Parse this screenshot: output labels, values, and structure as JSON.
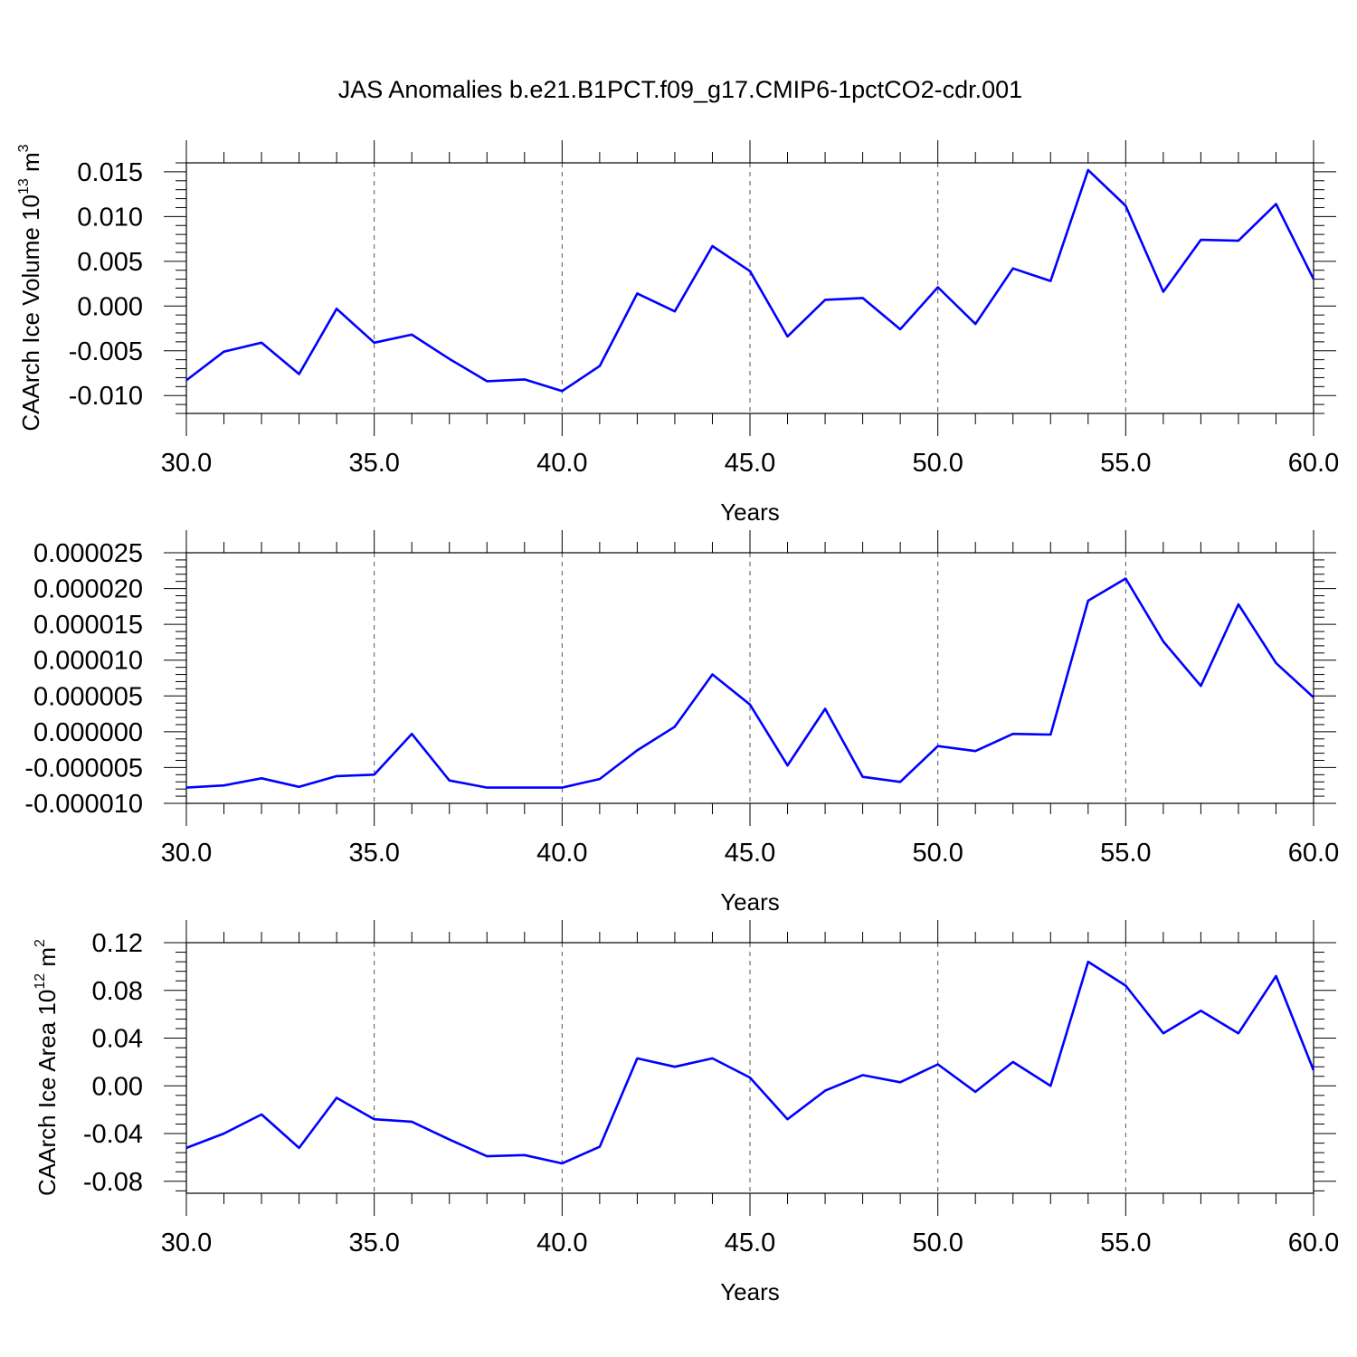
{
  "title": "JAS Anomalies b.e21.B1PCT.f09_g17.CMIP6-1pctCO2-cdr.001",
  "colors": {
    "line": "#0000ff",
    "axis": "#000000",
    "grid": "#555555"
  },
  "chart_data": [
    {
      "type": "line",
      "ylabel": {
        "text": "CAArch Ice Volume 10",
        "sup": "13",
        "unit": " m",
        "unit_sup": "3"
      },
      "xlabel": "Years",
      "xlim": [
        30,
        60
      ],
      "ylim": [
        -0.012,
        0.016
      ],
      "x_ticks": [
        30,
        35,
        40,
        45,
        50,
        55,
        60
      ],
      "x_tick_labels": [
        "30.0",
        "35.0",
        "40.0",
        "45.0",
        "50.0",
        "55.0",
        "60.0"
      ],
      "y_ticks": [
        -0.01,
        -0.005,
        0.0,
        0.005,
        0.01,
        0.015
      ],
      "y_tick_labels": [
        "-0.010",
        "-0.005",
        "0.000",
        "0.005",
        "0.010",
        "0.015"
      ],
      "grid": "dashed vertical at x major ticks",
      "series": [
        {
          "x": [
            30,
            31,
            32,
            33,
            34,
            35,
            36,
            37,
            38,
            39,
            40,
            41,
            42,
            43,
            44,
            45,
            46,
            47,
            48,
            49,
            50,
            51,
            52,
            53,
            54,
            55,
            56,
            57,
            58,
            59,
            60
          ],
          "values": [
            -0.0083,
            -0.0051,
            -0.0041,
            -0.0076,
            -0.0003,
            -0.0041,
            -0.0032,
            -0.0059,
            -0.0084,
            -0.0082,
            -0.0095,
            -0.0067,
            0.0014,
            -0.0006,
            0.0067,
            0.0039,
            -0.0034,
            0.0007,
            0.0009,
            -0.0026,
            0.0021,
            -0.002,
            0.0042,
            0.0028,
            0.0152,
            0.0112,
            0.0016,
            0.0074,
            0.0073,
            0.0114,
            0.003
          ]
        }
      ]
    },
    {
      "type": "line",
      "ylabel": null,
      "xlabel": "Years",
      "xlim": [
        30,
        60
      ],
      "ylim": [
        -1e-05,
        2.5e-05
      ],
      "x_ticks": [
        30,
        35,
        40,
        45,
        50,
        55,
        60
      ],
      "x_tick_labels": [
        "30.0",
        "35.0",
        "40.0",
        "45.0",
        "50.0",
        "55.0",
        "60.0"
      ],
      "y_ticks": [
        -1e-05,
        -5e-06,
        0,
        5e-06,
        1e-05,
        1.5e-05,
        2e-05,
        2.5e-05
      ],
      "y_tick_labels": [
        "-0.000010",
        "-0.000005",
        "0.000000",
        "0.000005",
        "0.000010",
        "0.000015",
        "0.000020",
        "0.000025"
      ],
      "grid": "dashed vertical at x major ticks",
      "series": [
        {
          "x": [
            30,
            31,
            32,
            33,
            34,
            35,
            36,
            37,
            38,
            39,
            40,
            41,
            42,
            43,
            44,
            45,
            46,
            47,
            48,
            49,
            50,
            51,
            52,
            53,
            54,
            55,
            56,
            57,
            58,
            59,
            60
          ],
          "values": [
            -7.8e-06,
            -7.5e-06,
            -6.5e-06,
            -7.7e-06,
            -6.2e-06,
            -6e-06,
            -3e-07,
            -6.8e-06,
            -7.8e-06,
            -7.8e-06,
            -7.8e-06,
            -6.6e-06,
            -2.6e-06,
            7e-07,
            8e-06,
            3.8e-06,
            -4.7e-06,
            3.2e-06,
            -6.3e-06,
            -7e-06,
            -2e-06,
            -2.7e-06,
            -3e-07,
            -4e-07,
            1.83e-05,
            2.14e-05,
            1.26e-05,
            6.4e-06,
            1.78e-05,
            9.6e-06,
            4.8e-06
          ]
        }
      ]
    },
    {
      "type": "line",
      "ylabel": {
        "text": "CAArch Ice Area 10",
        "sup": "12",
        "unit": " m",
        "unit_sup": "2"
      },
      "xlabel": "Years",
      "xlim": [
        30,
        60
      ],
      "ylim": [
        -0.09,
        0.12
      ],
      "x_ticks": [
        30,
        35,
        40,
        45,
        50,
        55,
        60
      ],
      "x_tick_labels": [
        "30.0",
        "35.0",
        "40.0",
        "45.0",
        "50.0",
        "55.0",
        "60.0"
      ],
      "y_ticks": [
        -0.08,
        -0.04,
        0.0,
        0.04,
        0.08,
        0.12
      ],
      "y_tick_labels": [
        "-0.08",
        "-0.04",
        "0.00",
        "0.04",
        "0.08",
        "0.12"
      ],
      "grid": "dashed vertical at x major ticks",
      "series": [
        {
          "x": [
            30,
            31,
            32,
            33,
            34,
            35,
            36,
            37,
            38,
            39,
            40,
            41,
            42,
            43,
            44,
            45,
            46,
            47,
            48,
            49,
            50,
            51,
            52,
            53,
            54,
            55,
            56,
            57,
            58,
            59,
            60
          ],
          "values": [
            -0.052,
            -0.04,
            -0.024,
            -0.052,
            -0.01,
            -0.028,
            -0.03,
            -0.045,
            -0.059,
            -0.058,
            -0.065,
            -0.051,
            0.023,
            0.016,
            0.023,
            0.007,
            -0.028,
            -0.004,
            0.009,
            0.003,
            0.018,
            -0.005,
            0.02,
            0.0,
            0.104,
            0.084,
            0.044,
            0.063,
            0.044,
            0.092,
            0.013
          ]
        }
      ]
    }
  ]
}
